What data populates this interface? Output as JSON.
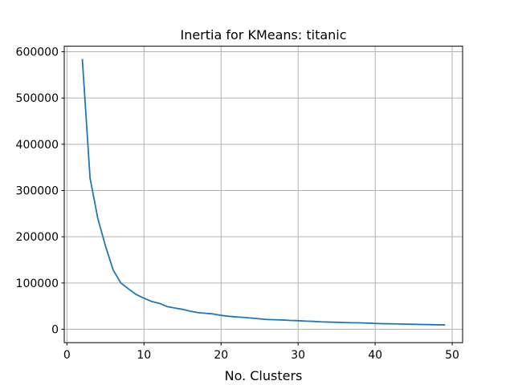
{
  "chart_data": {
    "type": "line",
    "title": "Inertia for KMeans: titanic",
    "xlabel": "No. Clusters",
    "ylabel": "",
    "xlim": [
      -0.35,
      51.35
    ],
    "ylim": [
      -29000,
      612000
    ],
    "xticks": [
      0,
      10,
      20,
      30,
      40,
      50
    ],
    "yticks": [
      0,
      100000,
      200000,
      300000,
      400000,
      500000,
      600000
    ],
    "grid": true,
    "series": [
      {
        "color": "#1f77b4",
        "x": [
          2,
          3,
          4,
          5,
          6,
          7,
          8,
          9,
          10,
          11,
          12,
          13,
          14,
          15,
          16,
          17,
          18,
          19,
          20,
          21,
          22,
          23,
          24,
          25,
          26,
          27,
          28,
          29,
          30,
          31,
          32,
          33,
          34,
          35,
          36,
          37,
          38,
          39,
          40,
          41,
          42,
          43,
          44,
          45,
          46,
          47,
          48,
          49
        ],
        "y": [
          583000,
          327000,
          240000,
          180000,
          128000,
          100000,
          87000,
          75000,
          67000,
          60000,
          56000,
          49000,
          46000,
          43000,
          39000,
          36000,
          34500,
          33000,
          30000,
          28000,
          26500,
          25500,
          24000,
          22500,
          21000,
          20500,
          20000,
          19000,
          18500,
          17500,
          17000,
          16000,
          15500,
          15000,
          14500,
          14000,
          13800,
          13300,
          12500,
          12000,
          11800,
          11500,
          11000,
          10700,
          10300,
          10000,
          9600,
          9400
        ]
      }
    ]
  }
}
